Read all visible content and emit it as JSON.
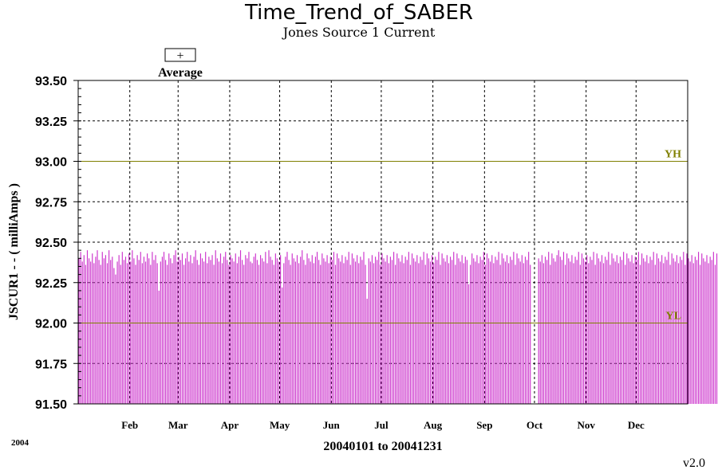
{
  "chart_data": {
    "type": "bar",
    "title": "Time_Trend_of_SABER",
    "subtitle": "Jones Source 1 Current",
    "ylabel": "JSCUR1  -  - ( milliAmps )",
    "xlabel": "20040101 to 20041231",
    "year_label": "2004",
    "version": "v2.0",
    "legend": {
      "symbol": "+",
      "label": "Average"
    },
    "ylim": [
      91.5,
      93.5
    ],
    "yticks": [
      "93.50",
      "93.25",
      "93.00",
      "92.75",
      "92.50",
      "92.25",
      "92.00",
      "91.75",
      "91.50"
    ],
    "x_range": [
      "2004-01-01",
      "2004-12-31"
    ],
    "x_month_labels": [
      {
        "label": "Feb",
        "date": "2004-02-01"
      },
      {
        "label": "Mar",
        "date": "2004-03-01"
      },
      {
        "label": "Apr",
        "date": "2004-04-01"
      },
      {
        "label": "May",
        "date": "2004-05-01"
      },
      {
        "label": "Jun",
        "date": "2004-06-01"
      },
      {
        "label": "Jul",
        "date": "2004-07-01"
      },
      {
        "label": "Aug",
        "date": "2004-08-01"
      },
      {
        "label": "Sep",
        "date": "2004-09-01"
      },
      {
        "label": "Oct",
        "date": "2004-10-01"
      },
      {
        "label": "Nov",
        "date": "2004-11-01"
      },
      {
        "label": "Dec",
        "date": "2004-12-01"
      }
    ],
    "limits": [
      {
        "label": "YH",
        "value": 93.0,
        "color": "#808000"
      },
      {
        "label": "YL",
        "value": 92.0,
        "color": "#808000"
      }
    ],
    "grid": true,
    "bar_color": "#cc33cc",
    "series": [
      {
        "x_start": "2004-01-01",
        "x_step_days": 1,
        "values": [
          92.4,
          92.44,
          92.38,
          92.42,
          92.36,
          92.45,
          92.4,
          92.38,
          92.43,
          92.37,
          92.41,
          92.45,
          92.39,
          92.36,
          92.44,
          92.4,
          92.42,
          92.37,
          92.45,
          92.39,
          92.41,
          92.34,
          92.3,
          92.38,
          92.42,
          92.36,
          92.44,
          92.39,
          92.41,
          92.37,
          92.43,
          92.38,
          92.45,
          92.4,
          92.36,
          92.42,
          92.39,
          92.44,
          92.37,
          92.41,
          92.38,
          92.43,
          92.4,
          92.36,
          92.44,
          92.39,
          92.42,
          92.37,
          92.2,
          92.38,
          92.41,
          92.44,
          92.39,
          92.36,
          92.43,
          92.4,
          92.37,
          92.42,
          92.45,
          92.38,
          92.41,
          92.39,
          92.43,
          92.36,
          92.4,
          92.44,
          92.38,
          92.42,
          92.37,
          92.41,
          92.45,
          92.39,
          92.36,
          92.43,
          92.4,
          92.38,
          92.44,
          92.37,
          92.41,
          92.39,
          92.42,
          92.36,
          92.45,
          92.4,
          92.38,
          92.43,
          92.37,
          92.41,
          92.44,
          92.39,
          92.36,
          92.42,
          92.4,
          92.38,
          92.43,
          92.37,
          92.41,
          92.45,
          92.39,
          92.36,
          92.42,
          92.4,
          92.44,
          92.38,
          92.37,
          92.41,
          92.43,
          92.39,
          92.36,
          92.42,
          92.4,
          92.38,
          92.44,
          92.37,
          92.45,
          92.41,
          92.39,
          92.36,
          92.43,
          92.4,
          92.38,
          92.42,
          92.22,
          92.37,
          92.41,
          92.44,
          92.39,
          92.36,
          92.43,
          92.4,
          92.38,
          92.42,
          92.37,
          92.41,
          92.45,
          92.39,
          92.36,
          92.43,
          92.4,
          92.38,
          92.42,
          92.37,
          92.41,
          92.44,
          92.39,
          92.36,
          92.43,
          92.4,
          92.38,
          92.42,
          92.37,
          92.41,
          92.39,
          92.44,
          92.36,
          92.43,
          92.4,
          92.38,
          92.42,
          92.37,
          92.41,
          92.39,
          92.44,
          92.36,
          92.43,
          92.4,
          92.38,
          92.42,
          92.37,
          92.41,
          92.39,
          92.44,
          92.36,
          92.15,
          92.4,
          92.38,
          92.42,
          92.37,
          92.41,
          92.39,
          92.44,
          92.36,
          92.43,
          92.4,
          92.38,
          92.42,
          92.37,
          92.41,
          92.39,
          92.44,
          92.36,
          92.43,
          92.4,
          92.38,
          92.42,
          92.37,
          92.41,
          92.39,
          92.44,
          92.36,
          92.43,
          92.4,
          92.38,
          92.42,
          92.37,
          92.41,
          92.39,
          92.44,
          92.36,
          92.43,
          92.4,
          92.38,
          92.42,
          92.37,
          92.41,
          92.39,
          92.44,
          92.36,
          92.43,
          92.4,
          92.38,
          92.42,
          92.37,
          92.41,
          92.39,
          92.44,
          92.36,
          92.43,
          92.4,
          92.38,
          92.42,
          92.37,
          92.41,
          92.39,
          92.24,
          92.36,
          92.43,
          92.4,
          92.38,
          92.42,
          92.37,
          92.41,
          92.39,
          92.44,
          92.36,
          92.43,
          92.4,
          92.38,
          92.42,
          92.37,
          92.41,
          92.39,
          92.44,
          92.36,
          92.43,
          92.4,
          92.38,
          92.42,
          92.37,
          92.41,
          92.39,
          92.44,
          92.36,
          92.43,
          92.4,
          92.38,
          92.42,
          92.37,
          92.41,
          92.39,
          92.44,
          92.36,
          null,
          null,
          null,
          null,
          92.4,
          92.38,
          92.42,
          92.37,
          92.41,
          92.39,
          92.44,
          92.36,
          92.43,
          92.4,
          92.38,
          92.42,
          92.45,
          92.41,
          92.39,
          92.44,
          92.36,
          92.43,
          92.4,
          92.38,
          92.42,
          92.37,
          92.41,
          92.39,
          92.44,
          92.36,
          92.43,
          92.4,
          92.38,
          92.42,
          92.37,
          92.41,
          92.39,
          92.44,
          92.36,
          92.43,
          92.4,
          92.38,
          92.42,
          92.37,
          92.41,
          92.39,
          92.44,
          92.36,
          92.43,
          92.4,
          92.38,
          92.42,
          92.37,
          92.41,
          92.39,
          92.44,
          92.36,
          92.43,
          92.4,
          92.38,
          92.42,
          92.37,
          92.41,
          92.39,
          92.44,
          92.36,
          92.43,
          92.4,
          92.38,
          92.42,
          92.37,
          92.41,
          92.39,
          92.44,
          92.36,
          92.43,
          92.4,
          92.38,
          92.42,
          92.37,
          92.41,
          92.39,
          92.44,
          92.36,
          92.43,
          92.4,
          92.38,
          92.42,
          92.37,
          92.41,
          92.39,
          92.44,
          92.36,
          92.43,
          92.4,
          92.38,
          92.42,
          92.37,
          92.41,
          92.39,
          92.44,
          92.36,
          92.43,
          92.4,
          92.38,
          92.42,
          92.37,
          92.41,
          92.39,
          92.44,
          92.36,
          92.43,
          92.4
        ]
      }
    ]
  }
}
